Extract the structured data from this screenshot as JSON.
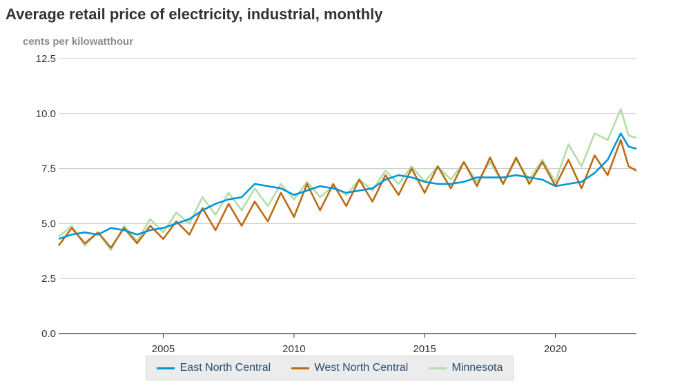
{
  "chart_data": {
    "type": "line",
    "title": "Average retail price of electricity, industrial, monthly",
    "ylabel": "cents per kilowatthour",
    "xlabel": "",
    "xlim": [
      2001,
      2023.1
    ],
    "ylim": [
      0,
      12.5
    ],
    "yticks": [
      "0.0",
      "2.5",
      "5.0",
      "7.5",
      "10.0",
      "12.5"
    ],
    "ytick_values": [
      0,
      2.5,
      5,
      7.5,
      10,
      12.5
    ],
    "xticks": [
      "2005",
      "2010",
      "2015",
      "2020"
    ],
    "xtick_values": [
      2005,
      2010,
      2015,
      2020
    ],
    "grid": true,
    "legend_position": "bottom-center",
    "series": [
      {
        "name": "East North Central",
        "color": "#0096d6",
        "x": [
          2001.0,
          2001.5,
          2002.0,
          2002.5,
          2003.0,
          2003.5,
          2004.0,
          2004.5,
          2005.0,
          2005.5,
          2006.0,
          2006.5,
          2007.0,
          2007.5,
          2008.0,
          2008.5,
          2009.0,
          2009.5,
          2010.0,
          2010.5,
          2011.0,
          2011.5,
          2012.0,
          2012.5,
          2013.0,
          2013.5,
          2014.0,
          2014.5,
          2015.0,
          2015.5,
          2016.0,
          2016.5,
          2017.0,
          2017.5,
          2018.0,
          2018.5,
          2019.0,
          2019.5,
          2020.0,
          2020.5,
          2021.0,
          2021.5,
          2022.0,
          2022.5,
          2022.8,
          2023.1
        ],
        "values": [
          4.3,
          4.5,
          4.6,
          4.5,
          4.8,
          4.7,
          4.5,
          4.7,
          4.8,
          5.0,
          5.2,
          5.6,
          5.9,
          6.1,
          6.2,
          6.8,
          6.7,
          6.6,
          6.3,
          6.5,
          6.7,
          6.6,
          6.4,
          6.5,
          6.6,
          7.0,
          7.2,
          7.1,
          6.9,
          6.8,
          6.8,
          6.9,
          7.1,
          7.1,
          7.1,
          7.2,
          7.1,
          7.0,
          6.7,
          6.8,
          6.9,
          7.3,
          7.9,
          9.1,
          8.5,
          8.4
        ]
      },
      {
        "name": "West North Central",
        "color": "#bd6b12",
        "x": [
          2001.0,
          2001.5,
          2002.0,
          2002.5,
          2003.0,
          2003.5,
          2004.0,
          2004.5,
          2005.0,
          2005.5,
          2006.0,
          2006.5,
          2007.0,
          2007.5,
          2008.0,
          2008.5,
          2009.0,
          2009.5,
          2010.0,
          2010.5,
          2011.0,
          2011.5,
          2012.0,
          2012.5,
          2013.0,
          2013.5,
          2014.0,
          2014.5,
          2015.0,
          2015.5,
          2016.0,
          2016.5,
          2017.0,
          2017.5,
          2018.0,
          2018.5,
          2019.0,
          2019.5,
          2020.0,
          2020.5,
          2021.0,
          2021.5,
          2022.0,
          2022.5,
          2022.8,
          2023.1
        ],
        "values": [
          4.0,
          4.8,
          4.1,
          4.6,
          3.9,
          4.8,
          4.1,
          4.9,
          4.3,
          5.1,
          4.5,
          5.7,
          4.7,
          5.9,
          4.9,
          6.0,
          5.1,
          6.4,
          5.3,
          6.8,
          5.6,
          6.8,
          5.8,
          7.0,
          6.0,
          7.2,
          6.3,
          7.5,
          6.4,
          7.6,
          6.6,
          7.8,
          6.7,
          8.0,
          6.8,
          8.0,
          6.8,
          7.8,
          6.7,
          7.9,
          6.6,
          8.1,
          7.2,
          8.8,
          7.6,
          7.4
        ]
      },
      {
        "name": "Minnesota",
        "color": "#b3dca6",
        "x": [
          2001.0,
          2001.5,
          2002.0,
          2002.5,
          2003.0,
          2003.5,
          2004.0,
          2004.5,
          2005.0,
          2005.5,
          2006.0,
          2006.5,
          2007.0,
          2007.5,
          2008.0,
          2008.5,
          2009.0,
          2009.5,
          2010.0,
          2010.5,
          2011.0,
          2011.5,
          2012.0,
          2012.5,
          2013.0,
          2013.5,
          2014.0,
          2014.5,
          2015.0,
          2015.5,
          2016.0,
          2016.5,
          2017.0,
          2017.5,
          2018.0,
          2018.5,
          2019.0,
          2019.5,
          2020.0,
          2020.5,
          2021.0,
          2021.5,
          2022.0,
          2022.5,
          2022.8,
          2023.1
        ],
        "values": [
          4.4,
          4.9,
          4.0,
          4.6,
          3.8,
          4.9,
          4.2,
          5.2,
          4.6,
          5.5,
          5.0,
          6.2,
          5.4,
          6.4,
          5.6,
          6.6,
          5.8,
          6.8,
          6.1,
          6.9,
          6.2,
          6.7,
          6.3,
          7.0,
          6.5,
          7.4,
          6.8,
          7.6,
          6.9,
          7.6,
          7.0,
          7.8,
          6.9,
          7.8,
          6.8,
          7.9,
          7.0,
          7.9,
          6.9,
          8.6,
          7.6,
          9.1,
          8.8,
          10.2,
          9.0,
          8.9
        ]
      }
    ]
  }
}
